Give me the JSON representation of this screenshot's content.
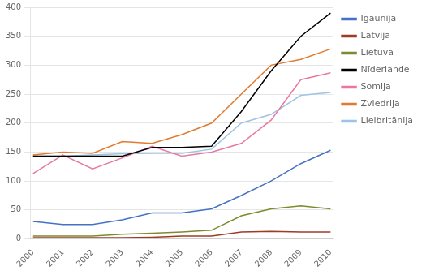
{
  "chart_data": {
    "type": "line",
    "x": [
      2000,
      2001,
      2002,
      2003,
      2004,
      2005,
      2006,
      2007,
      2008,
      2009,
      2010
    ],
    "series": [
      {
        "name": "Igaunija",
        "color": "#4472C4",
        "values": [
          30,
          25,
          25,
          33,
          45,
          45,
          52,
          75,
          100,
          130,
          153
        ]
      },
      {
        "name": "Latvija",
        "color": "#9E3B26",
        "values": [
          2,
          2,
          2,
          2,
          3,
          5,
          5,
          12,
          13,
          12,
          12
        ]
      },
      {
        "name": "Lietuva",
        "color": "#7A8C2E",
        "values": [
          5,
          5,
          5,
          8,
          10,
          12,
          15,
          40,
          52,
          57,
          52
        ]
      },
      {
        "name": "Nīderlande",
        "color": "#000000",
        "values": [
          143,
          143,
          143,
          143,
          158,
          158,
          160,
          220,
          290,
          350,
          390
        ]
      },
      {
        "name": "Somija",
        "color": "#E879A0",
        "values": [
          113,
          145,
          121,
          140,
          160,
          143,
          150,
          165,
          205,
          275,
          287
        ]
      },
      {
        "name": "Zviedrija",
        "color": "#E07B30",
        "values": [
          145,
          150,
          148,
          168,
          165,
          180,
          200,
          250,
          300,
          310,
          328
        ]
      },
      {
        "name": "Lielbritānija",
        "color": "#9DC3E6",
        "values": [
          143,
          143,
          145,
          147,
          148,
          148,
          155,
          200,
          215,
          248,
          253
        ]
      }
    ],
    "xlim": [
      1999.9,
      2010.1
    ],
    "xticks": [
      2000,
      2001,
      2002,
      2003,
      2004,
      2005,
      2006,
      2007,
      2008,
      2009,
      2010
    ],
    "ylim": [
      0,
      400
    ],
    "yticks": [
      0,
      50,
      100,
      150,
      200,
      250,
      300,
      350,
      400
    ],
    "grid": "y",
    "legend": "right"
  }
}
